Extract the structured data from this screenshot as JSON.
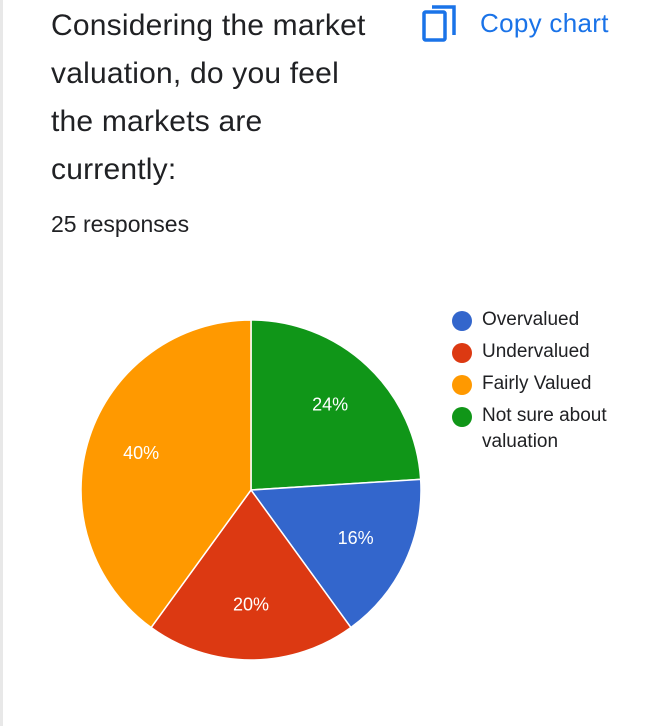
{
  "question": {
    "title": "Considering the market valuation, do you feel the markets are currently:",
    "response_count": "25 responses"
  },
  "actions": {
    "copy_label": "Copy chart",
    "copy_icon": "copy-icon"
  },
  "chart_data": {
    "type": "pie",
    "categories": [
      "Overvalued",
      "Undervalued",
      "Fairly Valued",
      "Not sure about valuation"
    ],
    "values": [
      16,
      20,
      40,
      24
    ],
    "labels": [
      "16%",
      "20%",
      "40%",
      "24%"
    ],
    "colors": [
      "#3366cc",
      "#dc3912",
      "#ff9900",
      "#109618"
    ],
    "legend_position": "right"
  }
}
